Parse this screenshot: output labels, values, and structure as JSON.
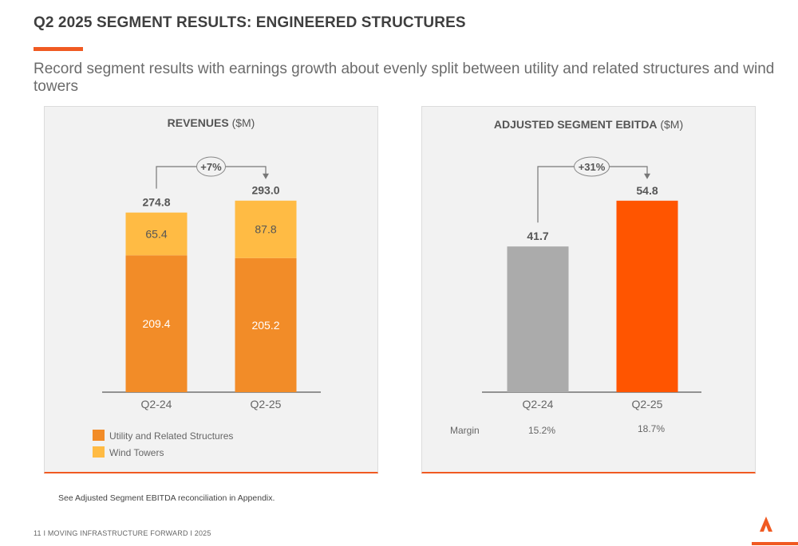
{
  "page": {
    "title": "Q2 2025 SEGMENT RESULTS: ENGINEERED STRUCTURES",
    "subtitle": "Record segment results with earnings growth about evenly split between utility and related structures and wind towers",
    "footnote": "See Adjusted Segment EBITDA reconciliation in Appendix.",
    "footer": "11  I   MOVING INFRASTRUCTURE FORWARD   I   2025",
    "accent_color": "#f05a22"
  },
  "chart_data": [
    {
      "type": "bar",
      "stacked": true,
      "title_bold": "REVENUES",
      "title_unit": "($M)",
      "categories": [
        "Q2-24",
        "Q2-25"
      ],
      "series": [
        {
          "name": "Utility and Related Structures",
          "values": [
            209.4,
            205.2
          ],
          "color": "#f28c28"
        },
        {
          "name": "Wind Towers",
          "values": [
            65.4,
            87.8
          ],
          "color": "#ffbb44"
        }
      ],
      "totals": [
        274.8,
        293.0
      ],
      "total_labels": [
        "274.8",
        "293.0"
      ],
      "segment_labels": [
        [
          "209.4",
          "205.2"
        ],
        [
          "65.4",
          "87.8"
        ]
      ],
      "growth_label": "+7%",
      "ylim": [
        0,
        300
      ],
      "legend_position": "bottom-left",
      "grid": false
    },
    {
      "type": "bar",
      "title_bold": "ADJUSTED SEGMENT EBITDA",
      "title_unit": "($M)",
      "categories": [
        "Q2-24",
        "Q2-25"
      ],
      "values": [
        41.7,
        54.8
      ],
      "value_labels": [
        "41.7",
        "54.8"
      ],
      "colors": [
        "#ababab",
        "#ff5500"
      ],
      "growth_label": "+31%",
      "margin_label": "Margin",
      "margins": [
        "15.2%",
        "18.7%"
      ],
      "ylim": [
        0,
        60
      ],
      "grid": false
    }
  ]
}
